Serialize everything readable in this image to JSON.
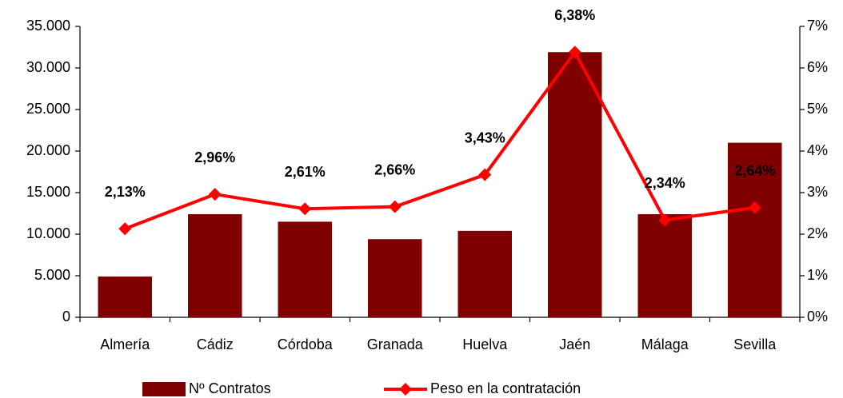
{
  "chart_data": {
    "type": "bar",
    "categories": [
      "Almería",
      "Cádiz",
      "Córdoba",
      "Granada",
      "Huelva",
      "Jaén",
      "Málaga",
      "Sevilla"
    ],
    "series": [
      {
        "name": "Nº Contratos",
        "type": "bar",
        "color": "#800000",
        "values": [
          4900,
          12400,
          11500,
          9400,
          10400,
          31900,
          12400,
          21000
        ]
      },
      {
        "name": "Peso en la contratación",
        "type": "line",
        "axis": "y2",
        "color": "#ff0000",
        "values": [
          2.13,
          2.96,
          2.61,
          2.66,
          3.43,
          6.38,
          2.34,
          2.64
        ],
        "value_labels": [
          "2,13%",
          "2,96%",
          "2,61%",
          "2,66%",
          "3,43%",
          "6,38%",
          "2,34%",
          "2,64%"
        ]
      }
    ],
    "ylim": [
      0,
      35000
    ],
    "yticks": [
      0,
      {
        "value": 5000,
        "label": "5.000"
      },
      {
        "value": 10000,
        "label": "10.000"
      },
      {
        "value": 15000,
        "label": "15.000"
      },
      {
        "value": 20000,
        "label": "20.000"
      },
      {
        "value": 25000,
        "label": "25.000"
      },
      {
        "value": 30000,
        "label": "30.000"
      },
      {
        "value": 35000,
        "label": "35.000"
      }
    ],
    "y2lim": [
      0,
      7
    ],
    "y2ticks": [
      {
        "value": 0,
        "label": "0%"
      },
      {
        "value": 1,
        "label": "1%"
      },
      {
        "value": 2,
        "label": "2%"
      },
      {
        "value": 3,
        "label": "3%"
      },
      {
        "value": 4,
        "label": "4%"
      },
      {
        "value": 5,
        "label": "5%"
      },
      {
        "value": 6,
        "label": "6%"
      },
      {
        "value": 7,
        "label": "7%"
      }
    ],
    "legend": "bottom"
  }
}
